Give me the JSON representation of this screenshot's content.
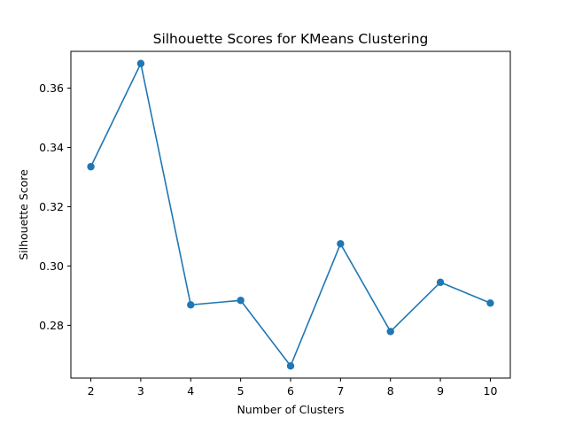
{
  "chart_data": {
    "type": "line",
    "title": "Silhouette Scores for KMeans Clustering",
    "xlabel": "Number of Clusters",
    "ylabel": "Silhouette Score",
    "x": [
      2,
      3,
      4,
      5,
      6,
      7,
      8,
      9,
      10
    ],
    "series": [
      {
        "values": [
          0.3335,
          0.3683,
          0.2869,
          0.2884,
          0.2663,
          0.3075,
          0.2779,
          0.2945,
          0.2875
        ],
        "color": "#1f77b4",
        "marker": "circle"
      }
    ],
    "x_ticks": [
      "2",
      "3",
      "4",
      "5",
      "6",
      "7",
      "8",
      "9",
      "10"
    ],
    "y_ticks": [
      "0.28",
      "0.30",
      "0.32",
      "0.34",
      "0.36"
    ],
    "xlim": [
      1.6,
      10.4
    ],
    "ylim": [
      0.2622,
      0.3724
    ],
    "grid": false,
    "legend": "none"
  }
}
